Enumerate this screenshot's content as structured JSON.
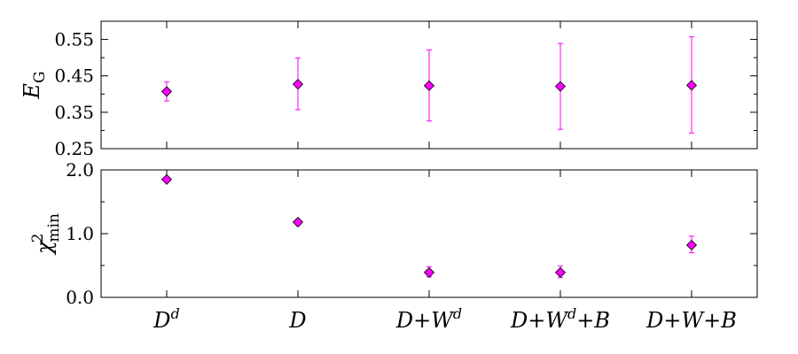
{
  "chart_data": [
    {
      "type": "scatter",
      "panel": "top",
      "ylabel": "E",
      "ylabel_sub": "G",
      "ylim": [
        0.25,
        0.6
      ],
      "yticks": [
        "0.25",
        "0.35",
        "0.45",
        "0.55"
      ],
      "ytick_values": [
        0.25,
        0.35,
        0.45,
        0.55
      ],
      "categories": [
        "D^d",
        "D",
        "D+W^d",
        "D+W^d+B",
        "D+W+B"
      ],
      "series": [
        {
          "values": [
            0.407,
            0.427,
            0.423,
            0.421,
            0.424
          ],
          "err_low": [
            0.381,
            0.357,
            0.326,
            0.303,
            0.293
          ],
          "err_high": [
            0.433,
            0.499,
            0.521,
            0.539,
            0.557
          ],
          "color": "#ff00ff"
        }
      ],
      "grid": false,
      "show_xticklabels": false
    },
    {
      "type": "scatter",
      "panel": "bottom",
      "ylabel": "χ",
      "ylabel_sup": "2",
      "ylabel_sub": "min",
      "ylim": [
        0.0,
        2.0
      ],
      "yticks": [
        "0.0",
        "1.0",
        "2.0"
      ],
      "ytick_values": [
        0.0,
        1.0,
        2.0
      ],
      "categories": [
        "D^d",
        "D",
        "D+W^d",
        "D+W^d+B",
        "D+W+B"
      ],
      "series": [
        {
          "values": [
            1.85,
            1.18,
            0.39,
            0.39,
            0.82
          ],
          "err_low": [
            1.85,
            1.14,
            0.32,
            0.31,
            0.7
          ],
          "err_high": [
            1.85,
            1.22,
            0.48,
            0.49,
            0.96
          ],
          "color": "#ff00ff"
        }
      ],
      "grid": false,
      "show_xticklabels": true
    }
  ],
  "x_labels": [
    {
      "base": "D",
      "sup": "d",
      "rest": ""
    },
    {
      "base": "D",
      "sup": "",
      "rest": ""
    },
    {
      "base": "D+W",
      "sup": "d",
      "rest": ""
    },
    {
      "base": "D+W",
      "sup": "d",
      "rest": "+B"
    },
    {
      "base": "D+W+B",
      "sup": "",
      "rest": ""
    }
  ],
  "colors": {
    "marker_fill": "#ff00ff",
    "marker_edge": "#000000",
    "errorbar": "#ff00ff",
    "axis": "#000000"
  }
}
